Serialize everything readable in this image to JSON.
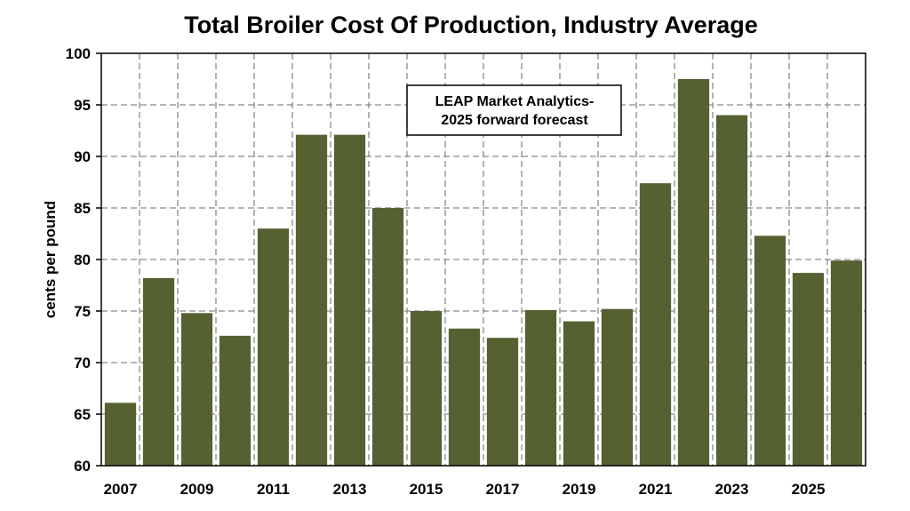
{
  "chart_data": {
    "type": "bar",
    "title": "Total Broiler Cost Of Production, Industry Average",
    "xlabel": "",
    "ylabel": "cents per pound",
    "ylim": [
      60,
      100
    ],
    "yticks": [
      60,
      65,
      70,
      75,
      80,
      85,
      90,
      95,
      100
    ],
    "grid": true,
    "bar_color": "#556131",
    "categories": [
      "2007",
      "2008",
      "2009",
      "2010",
      "2011",
      "2012",
      "2013",
      "2014",
      "2015",
      "2016",
      "2017",
      "2018",
      "2019",
      "2020",
      "2021",
      "2022",
      "2023",
      "2024",
      "2025",
      "2026"
    ],
    "x_tick_labels": [
      "2007",
      "2009",
      "2011",
      "2013",
      "2015",
      "2017",
      "2019",
      "2021",
      "2023",
      "2025"
    ],
    "values": [
      66.1,
      78.2,
      74.8,
      72.6,
      83.0,
      92.1,
      92.1,
      85.0,
      75.0,
      73.3,
      72.4,
      75.1,
      74.0,
      75.2,
      87.4,
      97.5,
      94.0,
      82.3,
      78.7,
      79.9
    ],
    "annotation": {
      "line1": "LEAP Market Analytics-",
      "line2": "2025 forward forecast"
    }
  }
}
